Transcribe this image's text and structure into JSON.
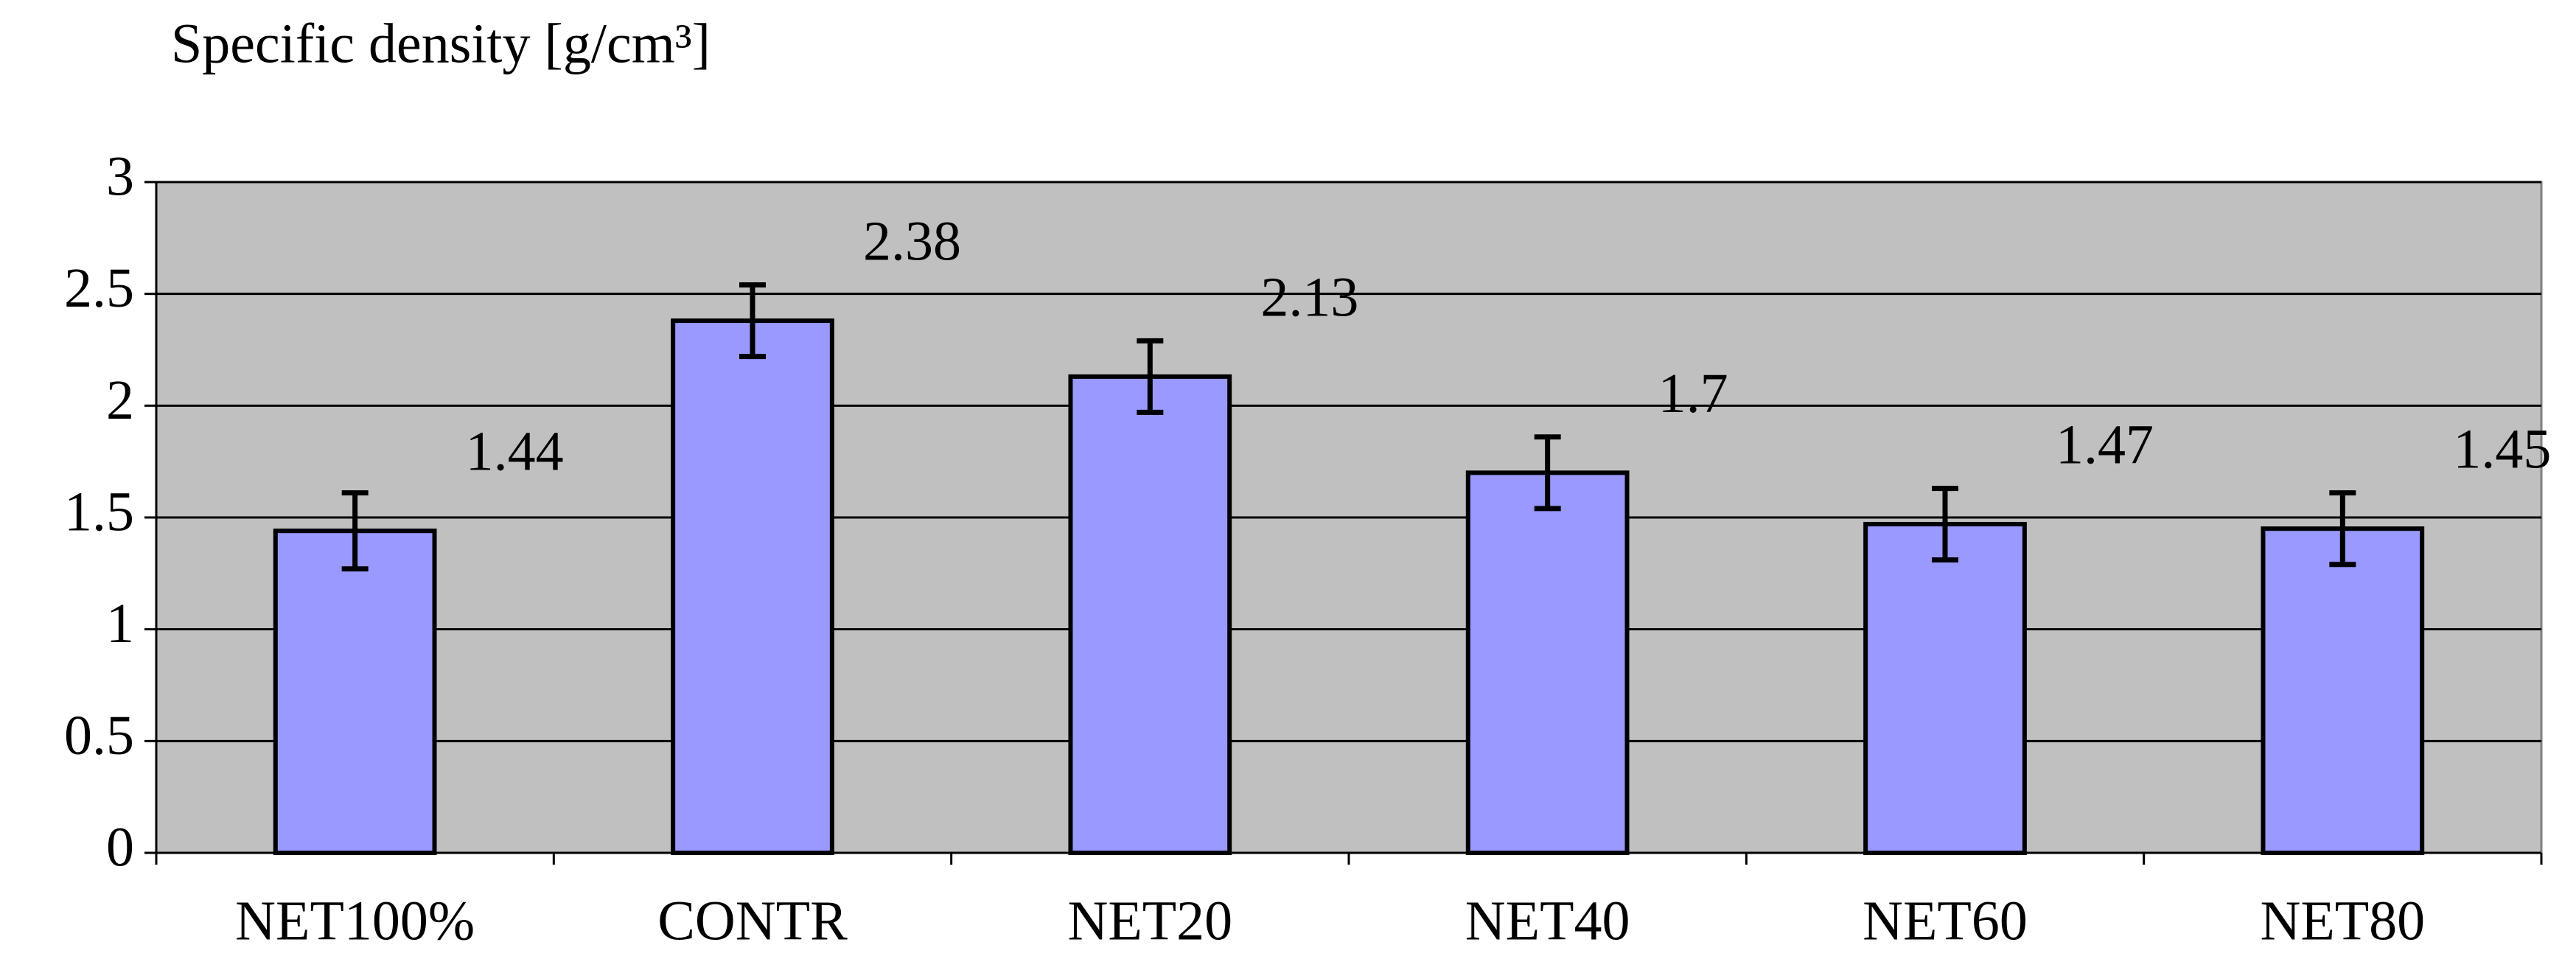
{
  "chart_data": {
    "type": "bar",
    "title": "Specific density [g/cm³]",
    "categories": [
      "NET100%",
      "CONTR",
      "NET20",
      "NET40",
      "NET60",
      "NET80"
    ],
    "values": [
      1.44,
      2.38,
      2.13,
      1.7,
      1.47,
      1.45
    ],
    "errors": [
      0.17,
      0.16,
      0.16,
      0.16,
      0.16,
      0.16
    ],
    "color": "#9999ff",
    "plot_background": "#c0c0c0",
    "ylim": [
      0,
      3
    ],
    "yticks": [
      0,
      0.5,
      1,
      1.5,
      2,
      2.5,
      3
    ],
    "grid": true
  }
}
